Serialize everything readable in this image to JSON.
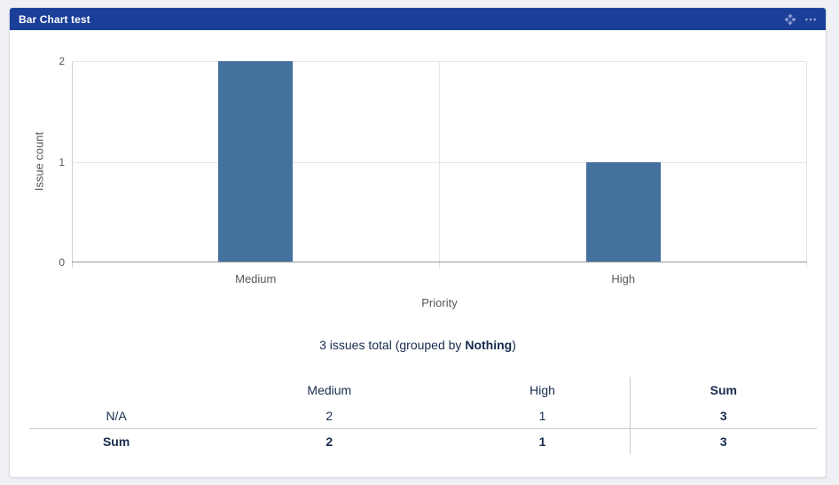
{
  "colors": {
    "header_bg": "#1b3e99",
    "header_icon": "#8fa0d4",
    "bar": "#45719f",
    "text_navy": "#172b4d",
    "axis_text": "#54585c",
    "page_bg": "#f0f1f4"
  },
  "gadget": {
    "title": "Bar Chart test"
  },
  "chart_data": {
    "type": "bar",
    "title": "",
    "categories": [
      "Medium",
      "High"
    ],
    "values": [
      2,
      1
    ],
    "xlabel": "Priority",
    "ylabel": "Issue count",
    "yticks": [
      0,
      1,
      2
    ],
    "ylim": [
      0,
      2
    ],
    "grid": true,
    "bar_color": "#45719f",
    "legend": "none"
  },
  "summary": {
    "prefix": "3 issues total (grouped by ",
    "group": "Nothing",
    "suffix": ")"
  },
  "table": {
    "columns": [
      "",
      "Medium",
      "High",
      "Sum"
    ],
    "rows": [
      {
        "label": "N/A",
        "values": [
          "2",
          "1",
          "3"
        ]
      },
      {
        "label": "Sum",
        "values": [
          "2",
          "1",
          "3"
        ]
      }
    ]
  }
}
